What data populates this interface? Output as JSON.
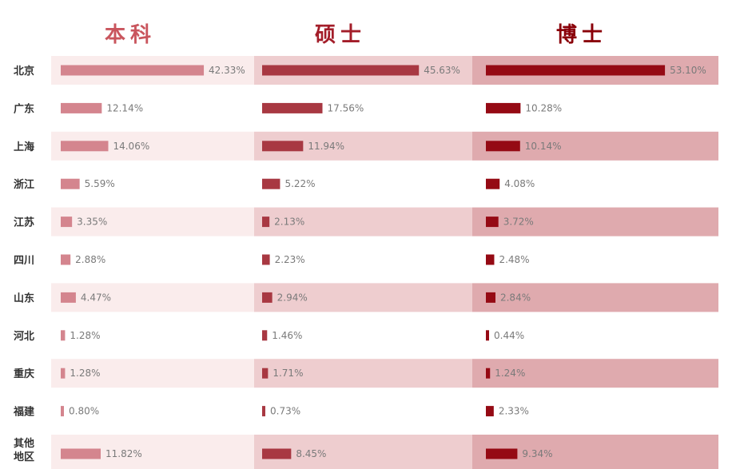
{
  "chart_data": {
    "type": "bar",
    "panels": [
      {
        "name": "本科",
        "color": "#d4858e"
      },
      {
        "name": "硕士",
        "color": "#a83842"
      },
      {
        "name": "博士",
        "color": "#950a14"
      }
    ],
    "categories": [
      {
        "lines": [
          "北京"
        ]
      },
      {
        "lines": [
          "广东"
        ]
      },
      {
        "lines": [
          "上海"
        ]
      },
      {
        "lines": [
          "浙江"
        ]
      },
      {
        "lines": [
          "江苏"
        ]
      },
      {
        "lines": [
          "四川"
        ]
      },
      {
        "lines": [
          "山东"
        ]
      },
      {
        "lines": [
          "河北"
        ]
      },
      {
        "lines": [
          "重庆"
        ]
      },
      {
        "lines": [
          "福建"
        ]
      },
      {
        "lines": [
          "其他",
          "地区"
        ]
      }
    ],
    "series": [
      {
        "name": "本科",
        "values": [
          42.33,
          12.14,
          14.06,
          5.59,
          3.35,
          2.88,
          4.47,
          1.28,
          1.28,
          0.8,
          11.82
        ],
        "labels": [
          "42.33%",
          "12.14%",
          "14.06%",
          "5.59%",
          "3.35%",
          "2.88%",
          "4.47%",
          "1.28%",
          "1.28%",
          "0.80%",
          "11.82%"
        ]
      },
      {
        "name": "硕士",
        "values": [
          45.63,
          17.56,
          11.94,
          5.22,
          2.13,
          2.23,
          2.94,
          1.46,
          1.71,
          0.73,
          8.45
        ],
        "labels": [
          "45.63%",
          "17.56%",
          "11.94%",
          "5.22%",
          "2.13%",
          "2.23%",
          "2.94%",
          "1.46%",
          "1.71%",
          "0.73%",
          "8.45%"
        ]
      },
      {
        "name": "博士",
        "values": [
          53.1,
          10.28,
          10.14,
          4.08,
          3.72,
          2.48,
          2.84,
          0.44,
          1.24,
          2.33,
          9.34
        ],
        "labels": [
          "53.10%",
          "10.28%",
          "10.14%",
          "4.08%",
          "3.72%",
          "2.48%",
          "2.84%",
          "0.44%",
          "1.24%",
          "2.33%",
          "9.34%"
        ]
      }
    ],
    "band_colors": [
      "#faecec",
      "#eecdcf",
      "#dfaaae"
    ],
    "header_colors": [
      "#c9555d",
      "#a31d29",
      "#8a0009"
    ]
  }
}
